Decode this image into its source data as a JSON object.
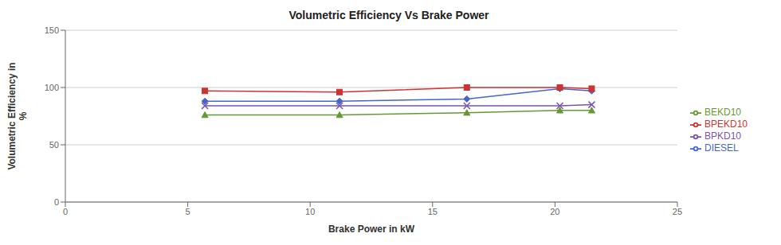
{
  "chart_data": {
    "type": "line",
    "title": "Volumetric Efficiency Vs Brake Power",
    "xlabel": "Brake Power in kW",
    "ylabel": "Volumetric Efficiency in\n%",
    "x": [
      5.7,
      11.2,
      16.4,
      20.2,
      21.5
    ],
    "series": [
      {
        "name": "DIESEL",
        "color": "#4466CC",
        "marker": "diamond",
        "values": [
          88,
          88,
          90,
          99,
          97
        ]
      },
      {
        "name": "BPEKD10",
        "color": "#CC3333",
        "marker": "square",
        "values": [
          97,
          96,
          100,
          100,
          99
        ]
      },
      {
        "name": "BEKD10",
        "color": "#669933",
        "marker": "triangle",
        "values": [
          76,
          76,
          78,
          80,
          80
        ]
      },
      {
        "name": "BPKD10",
        "color": "#7755AA",
        "marker": "cross",
        "values": [
          84,
          84,
          84,
          84,
          85
        ]
      }
    ],
    "xlim": [
      0,
      25
    ],
    "xticks": [
      0,
      5,
      10,
      15,
      20,
      25
    ],
    "ylim": [
      0,
      150
    ],
    "yticks": [
      0,
      50,
      100,
      150
    ],
    "grid": "y",
    "legend": "right"
  }
}
